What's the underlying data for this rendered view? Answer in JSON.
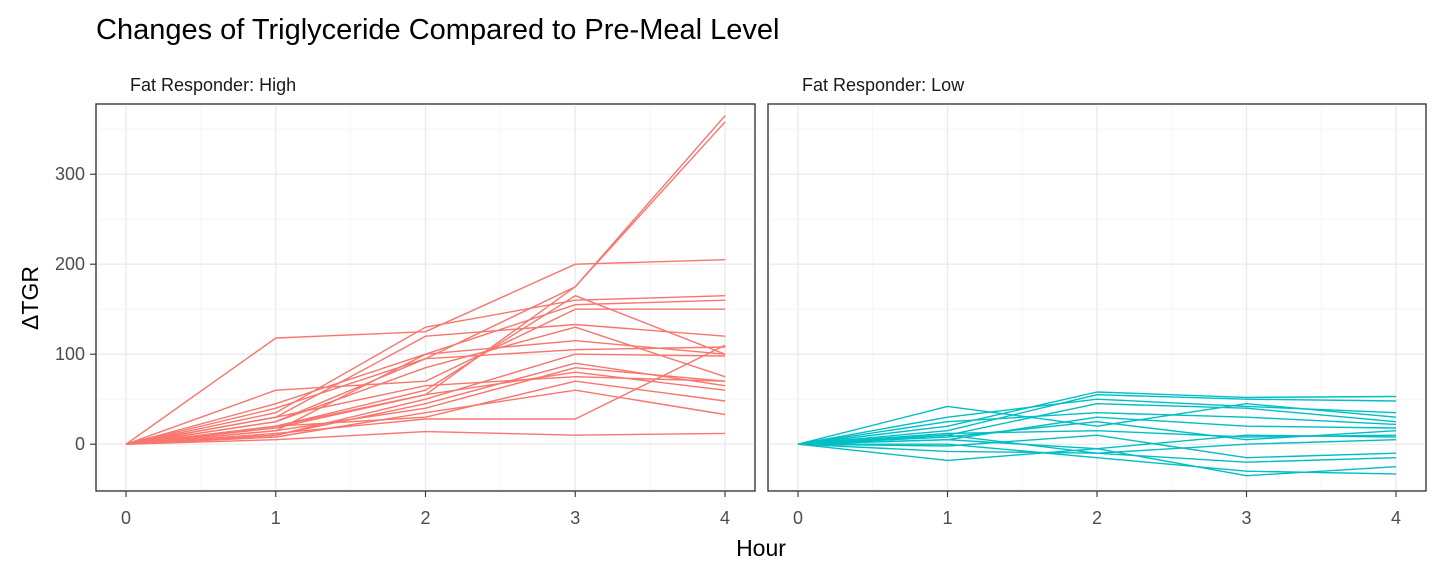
{
  "chart_data": {
    "type": "line",
    "title": "Changes of Triglyceride Compared to Pre-Meal Level",
    "xlabel": "Hour",
    "ylabel": "ΔTGR",
    "xlim": [
      0,
      4
    ],
    "ylim": [
      -52,
      378
    ],
    "x_ticks": [
      "0",
      "1",
      "2",
      "3",
      "4"
    ],
    "y_ticks": [
      "0",
      "100",
      "200",
      "300"
    ],
    "x": [
      0,
      1,
      2,
      3,
      4
    ],
    "grid": true,
    "legend": "none",
    "facets": [
      {
        "label": "Fat Responder: High",
        "color": "#F8766D",
        "series": [
          {
            "values": [
              0,
              20,
              55,
              175,
              365
            ]
          },
          {
            "values": [
              0,
              25,
              95,
              175,
              358
            ]
          },
          {
            "values": [
              0,
              118,
              125,
              200,
              205
            ]
          },
          {
            "values": [
              0,
              35,
              130,
              160,
              165
            ]
          },
          {
            "values": [
              0,
              45,
              100,
              155,
              160
            ]
          },
          {
            "values": [
              0,
              60,
              70,
              150,
              150
            ]
          },
          {
            "values": [
              0,
              30,
              120,
              133,
              120
            ]
          },
          {
            "values": [
              0,
              15,
              100,
              115,
              100
            ]
          },
          {
            "values": [
              0,
              40,
              95,
              105,
              108
            ]
          },
          {
            "values": [
              0,
              20,
              60,
              165,
              100
            ]
          },
          {
            "values": [
              0,
              10,
              50,
              100,
              98
            ]
          },
          {
            "values": [
              0,
              25,
              85,
              130,
              75
            ]
          },
          {
            "values": [
              0,
              15,
              40,
              85,
              70
            ]
          },
          {
            "values": [
              0,
              30,
              65,
              75,
              70
            ]
          },
          {
            "values": [
              0,
              10,
              45,
              90,
              65
            ]
          },
          {
            "values": [
              0,
              20,
              30,
              70,
              48
            ]
          },
          {
            "values": [
              0,
              12,
              28,
              28,
              110
            ]
          },
          {
            "values": [
              0,
              8,
              35,
              60,
              33
            ]
          },
          {
            "values": [
              0,
              18,
              55,
              80,
              60
            ]
          },
          {
            "values": [
              0,
              5,
              14,
              10,
              12
            ]
          }
        ]
      },
      {
        "label": "Fat Responder: Low",
        "color": "#00BFC4",
        "series": [
          {
            "values": [
              0,
              20,
              58,
              52,
              53
            ]
          },
          {
            "values": [
              0,
              15,
              55,
              50,
              48
            ]
          },
          {
            "values": [
              0,
              30,
              50,
              42,
              35
            ]
          },
          {
            "values": [
              0,
              42,
              20,
              45,
              30
            ]
          },
          {
            "values": [
              0,
              10,
              45,
              40,
              25
            ]
          },
          {
            "values": [
              0,
              25,
              35,
              30,
              22
            ]
          },
          {
            "values": [
              0,
              5,
              30,
              20,
              18
            ]
          },
          {
            "values": [
              0,
              8,
              25,
              5,
              15
            ]
          },
          {
            "values": [
              0,
              12,
              15,
              8,
              10
            ]
          },
          {
            "values": [
              0,
              5,
              -5,
              10,
              8
            ]
          },
          {
            "values": [
              0,
              -2,
              10,
              -15,
              -10
            ]
          },
          {
            "values": [
              0,
              -8,
              -10,
              -20,
              -15
            ]
          },
          {
            "values": [
              0,
              -18,
              -5,
              -35,
              -25
            ]
          },
          {
            "values": [
              0,
              0,
              -15,
              -30,
              -33
            ]
          },
          {
            "values": [
              0,
              10,
              -10,
              0,
              5
            ]
          }
        ]
      }
    ]
  }
}
